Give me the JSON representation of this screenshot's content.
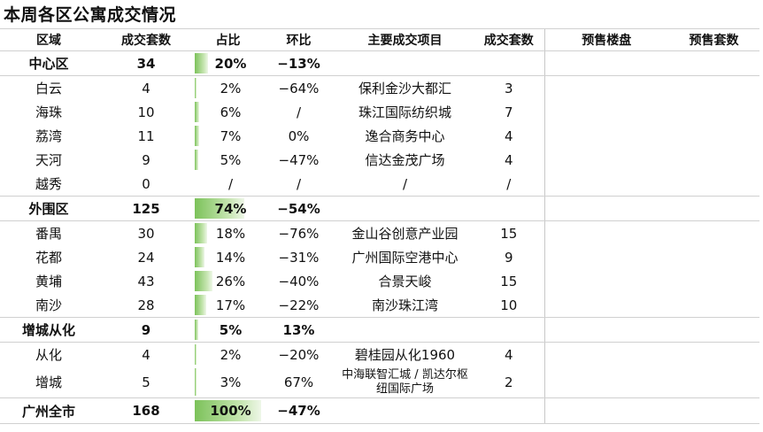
{
  "title": "本周各区公寓成交情况",
  "headers": {
    "region": "区域",
    "units": "成交套数",
    "share": "占比",
    "mom": "环比",
    "project": "主要成交项目",
    "project_units": "成交套数",
    "presale_project": "预售楼盘",
    "presale_units": "预售套数"
  },
  "rows": [
    {
      "type": "group",
      "region": "中心区",
      "units": "34",
      "share": "20%",
      "share_value": 20,
      "mom": "−13%",
      "project": "",
      "project_units": ""
    },
    {
      "type": "sub",
      "region": "白云",
      "units": "4",
      "share": "2%",
      "share_value": 2,
      "mom": "−64%",
      "project": "保利金沙大都汇",
      "project_units": "3"
    },
    {
      "type": "sub",
      "region": "海珠",
      "units": "10",
      "share": "6%",
      "share_value": 6,
      "mom": "/",
      "project": "珠江国际纺织城",
      "project_units": "7"
    },
    {
      "type": "sub",
      "region": "荔湾",
      "units": "11",
      "share": "7%",
      "share_value": 7,
      "mom": "0%",
      "project": "逸合商务中心",
      "project_units": "4"
    },
    {
      "type": "sub",
      "region": "天河",
      "units": "9",
      "share": "5%",
      "share_value": 5,
      "mom": "−47%",
      "project": "信达金茂广场",
      "project_units": "4"
    },
    {
      "type": "sub",
      "region": "越秀",
      "units": "0",
      "share": "/",
      "share_value": 0,
      "mom": "/",
      "project": "/",
      "project_units": "/"
    },
    {
      "type": "group",
      "region": "外围区",
      "units": "125",
      "share": "74%",
      "share_value": 74,
      "mom": "−54%",
      "project": "",
      "project_units": ""
    },
    {
      "type": "sub",
      "region": "番禺",
      "units": "30",
      "share": "18%",
      "share_value": 18,
      "mom": "−76%",
      "project": "金山谷创意产业园",
      "project_units": "15"
    },
    {
      "type": "sub",
      "region": "花都",
      "units": "24",
      "share": "14%",
      "share_value": 14,
      "mom": "−31%",
      "project": "广州国际空港中心",
      "project_units": "9"
    },
    {
      "type": "sub",
      "region": "黄埔",
      "units": "43",
      "share": "26%",
      "share_value": 26,
      "mom": "−40%",
      "project": "合景天峻",
      "project_units": "15"
    },
    {
      "type": "sub",
      "region": "南沙",
      "units": "28",
      "share": "17%",
      "share_value": 17,
      "mom": "−22%",
      "project": "南沙珠江湾",
      "project_units": "10"
    },
    {
      "type": "group",
      "region": "增城从化",
      "units": "9",
      "share": "5%",
      "share_value": 5,
      "mom": "13%",
      "project": "",
      "project_units": ""
    },
    {
      "type": "sub",
      "region": "从化",
      "units": "4",
      "share": "2%",
      "share_value": 2,
      "mom": "−20%",
      "project": "碧桂园从化1960",
      "project_units": "4"
    },
    {
      "type": "sub",
      "region": "增城",
      "units": "5",
      "share": "3%",
      "share_value": 3,
      "mom": "67%",
      "project": "中海联智汇城 / 凯达尔枢纽国际广场",
      "project_units": "2"
    },
    {
      "type": "total",
      "region": "广州全市",
      "units": "168",
      "share": "100%",
      "share_value": 100,
      "mom": "−47%",
      "project": "",
      "project_units": ""
    }
  ]
}
